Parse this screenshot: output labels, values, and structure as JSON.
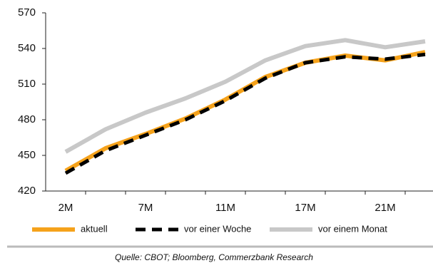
{
  "chart_data": {
    "type": "line",
    "categories": [
      "2M",
      null,
      "7M",
      null,
      "11M",
      null,
      "17M",
      null,
      "21M",
      null
    ],
    "series": [
      {
        "name": "aktuell",
        "color": "#f5a21b",
        "dashed": false,
        "values": [
          437,
          456,
          468,
          481,
          497,
          516,
          528,
          534,
          530,
          537
        ]
      },
      {
        "name": "vor einer Woche",
        "color": "#000000",
        "dashed": true,
        "values": [
          435,
          454,
          467,
          480,
          496,
          515,
          528,
          533,
          531,
          535
        ]
      },
      {
        "name": "vor einem Monat",
        "color": "#c8c8c8",
        "dashed": false,
        "values": [
          453,
          472,
          486,
          498,
          512,
          530,
          542,
          547,
          541,
          546
        ]
      }
    ],
    "ylim": [
      420,
      570
    ],
    "yticks": [
      420,
      450,
      480,
      510,
      540,
      570
    ],
    "source": "Quelle: CBOT; Bloomberg, Commerzbank Research"
  }
}
